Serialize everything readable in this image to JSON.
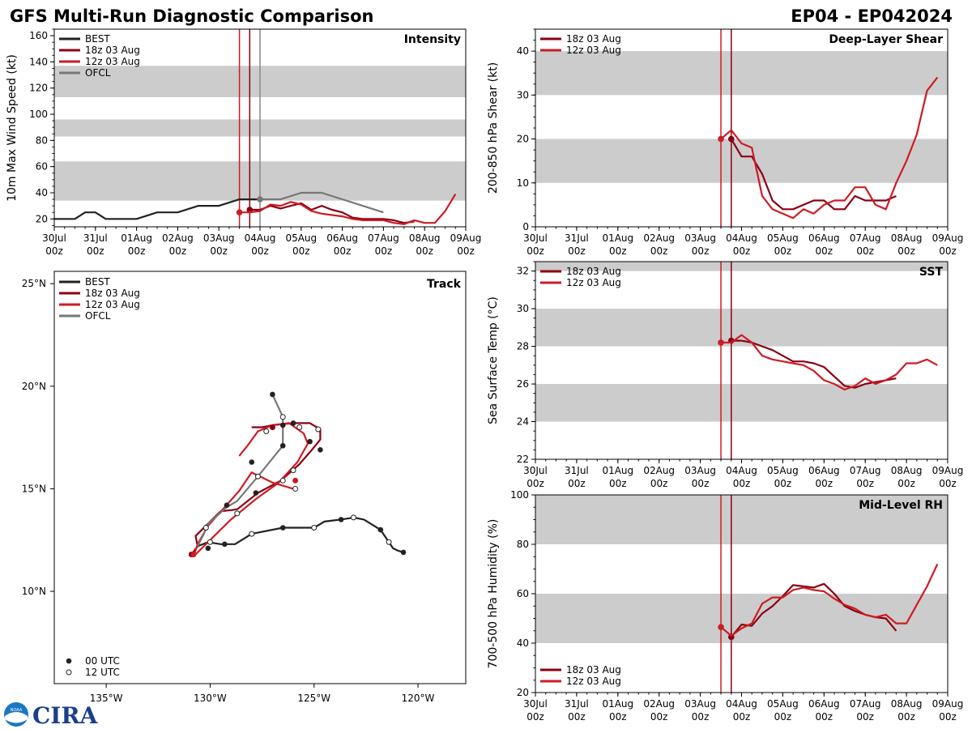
{
  "header": {
    "title": "GFS Multi-Run Diagnostic Comparison",
    "storm_id": "EP04 - EP042024"
  },
  "logo": {
    "text": "CIRA",
    "badge": "NOAA"
  },
  "colors": {
    "best": "#222222",
    "run18": "#8b0012",
    "run12": "#cc1c24",
    "ofcl": "#777777",
    "band": "#cccccc",
    "vline_18": "#8b0012",
    "vline_12": "#cc1c24",
    "vline_ofcl": "#888888"
  },
  "time_axis": {
    "ticks": [
      {
        "top": "30Jul",
        "bottom": "00z"
      },
      {
        "top": "31Jul",
        "bottom": "00z"
      },
      {
        "top": "01Aug",
        "bottom": "00z"
      },
      {
        "top": "02Aug",
        "bottom": "00z"
      },
      {
        "top": "03Aug",
        "bottom": "00z"
      },
      {
        "top": "04Aug",
        "bottom": "00z"
      },
      {
        "top": "05Aug",
        "bottom": "00z"
      },
      {
        "top": "06Aug",
        "bottom": "00z"
      },
      {
        "top": "07Aug",
        "bottom": "00z"
      },
      {
        "top": "08Aug",
        "bottom": "00z"
      },
      {
        "top": "09Aug",
        "bottom": "00z"
      }
    ],
    "run_lines": {
      "run12": 4.5,
      "run18": 4.75,
      "ofcl": 5.0
    }
  },
  "chart_data": [
    {
      "id": "intensity",
      "type": "line",
      "title": "Intensity",
      "ylabel": "10m Max Wind Speed (kt)",
      "xlim": [
        0,
        10
      ],
      "ylim": [
        14,
        165
      ],
      "yticks": [
        20,
        40,
        60,
        80,
        100,
        120,
        140,
        160
      ],
      "bands": [
        [
          34,
          64
        ],
        [
          83,
          96
        ],
        [
          113,
          137
        ]
      ],
      "legend": [
        "BEST",
        "18z 03 Aug",
        "12z 03 Aug",
        "OFCL"
      ],
      "series": [
        {
          "name": "BEST",
          "key": "best",
          "x": [
            0,
            0.5,
            0.75,
            1.0,
            1.25,
            2.0,
            2.5,
            3.0,
            3.5,
            3.75,
            4.0,
            4.5,
            4.75,
            5.0
          ],
          "y": [
            20,
            20,
            25,
            25,
            20,
            20,
            25,
            25,
            30,
            30,
            30,
            35,
            35,
            35
          ]
        },
        {
          "name": "18z 03 Aug",
          "key": "run18",
          "x": [
            4.75,
            5.0,
            5.25,
            5.5,
            5.75,
            6.0,
            6.25,
            6.5,
            6.75,
            7.0,
            7.25,
            7.5,
            7.75,
            8.0,
            8.25,
            8.5,
            8.75
          ],
          "y": [
            27,
            27,
            30,
            28,
            30,
            32,
            27,
            30,
            27,
            25,
            21,
            20,
            20,
            20,
            19,
            17,
            18
          ]
        },
        {
          "name": "12z 03 Aug",
          "key": "run12",
          "x": [
            4.5,
            4.75,
            5.0,
            5.25,
            5.5,
            5.75,
            6.0,
            6.25,
            6.5,
            6.75,
            7.0,
            7.25,
            7.5,
            7.75,
            8.0,
            8.25,
            8.5,
            8.75,
            9.0,
            9.25,
            9.5,
            9.75
          ],
          "y": [
            25,
            25,
            26,
            31,
            30,
            33,
            31,
            26,
            24,
            23,
            22,
            20,
            19,
            19,
            19,
            17,
            16,
            19,
            17,
            17,
            26,
            39
          ]
        },
        {
          "name": "OFCL",
          "key": "ofcl",
          "x": [
            5.0,
            5.5,
            6.0,
            6.5,
            8.0
          ],
          "y": [
            35,
            35,
            40,
            40,
            25
          ]
        }
      ]
    },
    {
      "id": "shear",
      "type": "line",
      "title": "Deep-Layer Shear",
      "ylabel": "200-850 hPa Shear (kt)",
      "xlim": [
        0,
        10
      ],
      "ylim": [
        0,
        45
      ],
      "yticks": [
        0,
        10,
        20,
        30,
        40
      ],
      "bands": [
        [
          10,
          20
        ],
        [
          30,
          40
        ]
      ],
      "legend": [
        "18z 03 Aug",
        "12z 03 Aug"
      ],
      "series": [
        {
          "name": "18z 03 Aug",
          "key": "run18",
          "x": [
            4.75,
            5.0,
            5.25,
            5.5,
            5.75,
            6.0,
            6.25,
            6.5,
            6.75,
            7.0,
            7.25,
            7.5,
            7.75,
            8.0,
            8.25,
            8.5,
            8.75
          ],
          "y": [
            20,
            16,
            16,
            12,
            6,
            4,
            4,
            5,
            6,
            6,
            4,
            4,
            7,
            6,
            6,
            6,
            7
          ]
        },
        {
          "name": "12z 03 Aug",
          "key": "run12",
          "x": [
            4.5,
            4.75,
            5.0,
            5.25,
            5.5,
            5.75,
            6.0,
            6.25,
            6.5,
            6.75,
            7.0,
            7.25,
            7.5,
            7.75,
            8.0,
            8.25,
            8.5,
            8.75,
            9.0,
            9.25,
            9.5,
            9.75
          ],
          "y": [
            20,
            22,
            19,
            18,
            7,
            4,
            3,
            2,
            4,
            3,
            5,
            6,
            6,
            9,
            9,
            5,
            4,
            10,
            15,
            21,
            31,
            34
          ]
        }
      ]
    },
    {
      "id": "sst",
      "type": "line",
      "title": "SST",
      "ylabel": "Sea Surface Temp (°C)",
      "xlim": [
        0,
        10
      ],
      "ylim": [
        22,
        32.5
      ],
      "yticks": [
        22,
        24,
        26,
        28,
        30,
        32
      ],
      "bands": [
        [
          24,
          26
        ],
        [
          28,
          30
        ],
        [
          32,
          32.5
        ]
      ],
      "legend": [
        "18z 03 Aug",
        "12z 03 Aug"
      ],
      "series": [
        {
          "name": "18z 03 Aug",
          "key": "run18",
          "x": [
            4.75,
            5.0,
            5.25,
            5.5,
            5.75,
            6.0,
            6.25,
            6.5,
            6.75,
            7.0,
            7.25,
            7.5,
            7.75,
            8.0,
            8.25,
            8.5,
            8.75
          ],
          "y": [
            28.3,
            28.3,
            28.2,
            28.0,
            27.8,
            27.5,
            27.2,
            27.2,
            27.1,
            26.9,
            26.4,
            25.9,
            25.8,
            26.0,
            26.1,
            26.2,
            26.3
          ]
        },
        {
          "name": "12z 03 Aug",
          "key": "run12",
          "x": [
            4.5,
            4.75,
            5.0,
            5.25,
            5.5,
            5.75,
            6.0,
            6.25,
            6.5,
            6.75,
            7.0,
            7.25,
            7.5,
            7.75,
            8.0,
            8.25,
            8.5,
            8.75,
            9.0,
            9.25,
            9.5,
            9.75
          ],
          "y": [
            28.2,
            28.2,
            28.6,
            28.2,
            27.5,
            27.3,
            27.2,
            27.1,
            27.0,
            26.7,
            26.2,
            26.0,
            25.7,
            25.9,
            26.3,
            26.0,
            26.2,
            26.5,
            27.1,
            27.1,
            27.3,
            27.0
          ]
        }
      ]
    },
    {
      "id": "rh",
      "type": "line",
      "title": "Mid-Level RH",
      "ylabel": "700-500 hPa Humidity (%)",
      "xlim": [
        0,
        10
      ],
      "ylim": [
        20,
        100
      ],
      "yticks": [
        20,
        40,
        60,
        80,
        100
      ],
      "bands": [
        [
          40,
          60
        ],
        [
          80,
          100
        ]
      ],
      "legend": [
        "18z 03 Aug",
        "12z 03 Aug"
      ],
      "series": [
        {
          "name": "18z 03 Aug",
          "key": "run18",
          "x": [
            4.75,
            5.0,
            5.25,
            5.5,
            5.75,
            6.0,
            6.25,
            6.5,
            6.75,
            7.0,
            7.25,
            7.5,
            7.75,
            8.0,
            8.25,
            8.5,
            8.75
          ],
          "y": [
            42.5,
            47.5,
            47,
            52,
            55,
            59,
            63.5,
            63,
            62.5,
            64,
            60,
            55,
            53,
            51.5,
            50.5,
            50,
            45
          ]
        },
        {
          "name": "12z 03 Aug",
          "key": "run12",
          "x": [
            4.5,
            4.75,
            5.0,
            5.25,
            5.5,
            5.75,
            6.0,
            6.25,
            6.5,
            6.75,
            7.0,
            7.25,
            7.5,
            7.75,
            8.0,
            8.25,
            8.5,
            8.75,
            9.0,
            9.25,
            9.5,
            9.75
          ],
          "y": [
            46.5,
            43,
            46,
            48,
            56,
            58.5,
            58.5,
            61.5,
            62.5,
            61.5,
            61,
            58,
            55.5,
            54,
            51.5,
            50.5,
            51.5,
            48,
            48,
            55.5,
            63,
            72
          ]
        }
      ]
    },
    {
      "id": "track",
      "type": "scatter",
      "title": "Track",
      "xlim": [
        -137.5,
        -117.7
      ],
      "ylim": [
        5.5,
        25.6
      ],
      "xticks": [
        {
          "v": -135,
          "label": "135°W"
        },
        {
          "v": -130,
          "label": "130°W"
        },
        {
          "v": -125,
          "label": "125°W"
        },
        {
          "v": -120,
          "label": "120°W"
        }
      ],
      "yticks": [
        {
          "v": 10,
          "label": "10°N"
        },
        {
          "v": 15,
          "label": "15°N"
        },
        {
          "v": 20,
          "label": "20°N"
        },
        {
          "v": 25,
          "label": "25°N"
        }
      ],
      "legend": [
        "BEST",
        "18z 03 Aug",
        "12z 03 Aug",
        "OFCL"
      ],
      "marker_legend": [
        "00 UTC",
        "12 UTC"
      ],
      "series": [
        {
          "name": "BEST",
          "key": "best",
          "lon": [
            -120.7,
            -121.0,
            -121.2,
            -121.4,
            -121.8,
            -122.6,
            -123.1,
            -123.7,
            -124.5,
            -125.0,
            -126.5,
            -128.0,
            -128.8,
            -129.5,
            -130.1,
            -130.6
          ],
          "lat": [
            11.9,
            12.0,
            12.1,
            12.4,
            13.0,
            13.5,
            13.6,
            13.5,
            13.4,
            13.1,
            13.1,
            12.8,
            12.3,
            12.3,
            12.4,
            12.2
          ],
          "m00": [
            [
              -120.7,
              11.9
            ],
            [
              -121.8,
              13.0
            ],
            [
              -123.7,
              13.5
            ],
            [
              -126.5,
              13.1
            ],
            [
              -129.3,
              12.3
            ],
            [
              -130.1,
              12.1
            ]
          ],
          "m12": [
            [
              -121.4,
              12.4
            ],
            [
              -123.1,
              13.6
            ],
            [
              -125.0,
              13.1
            ],
            [
              -128.0,
              12.8
            ],
            [
              -130.0,
              12.4
            ]
          ]
        },
        {
          "name": "18z 03 Aug",
          "key": "run18",
          "lon": [
            -130.9,
            -130.6,
            -130.7,
            -130.0,
            -129.5,
            -128.7,
            -127.7,
            -126.6,
            -125.7,
            -125.1,
            -124.7,
            -124.7,
            -125.2,
            -126.0,
            -127.0,
            -127.5,
            -128.0
          ],
          "lat": [
            11.8,
            12.2,
            12.7,
            13.4,
            13.9,
            14.0,
            14.8,
            15.4,
            16.2,
            16.9,
            17.4,
            17.9,
            18.2,
            18.2,
            18.1,
            18.0,
            18.0
          ],
          "m00": [],
          "m12": []
        },
        {
          "name": "12z 03 Aug",
          "key": "run12",
          "lon": [
            -126.0,
            -127.0,
            -128.0,
            -128.6,
            -129.3,
            -130.1,
            -130.6,
            -130.8,
            -130.2,
            -129.0,
            -127.8,
            -126.7,
            -125.8,
            -125.3,
            -125.5,
            -126.2,
            -127.0,
            -127.7,
            -128.2,
            -128.6
          ],
          "lat": [
            15.0,
            15.3,
            15.8,
            14.9,
            14.1,
            13.2,
            12.3,
            11.7,
            12.3,
            13.5,
            14.5,
            15.3,
            16.3,
            17.2,
            17.7,
            18.2,
            18.1,
            17.8,
            17.1,
            16.6
          ],
          "m00": [],
          "m12": []
        },
        {
          "name": "OFCL",
          "key": "ofcl",
          "lon": [
            -130.6,
            -130.3,
            -130.1,
            -129.2,
            -128.7,
            -127.7,
            -126.5,
            -126.5,
            -126.5,
            -127.0
          ],
          "lat": [
            12.2,
            12.8,
            13.3,
            14.1,
            14.4,
            15.6,
            17.1,
            18.1,
            18.5,
            19.6
          ],
          "m00": [
            [
              -129.2,
              14.2
            ],
            [
              -127.0,
              19.6
            ],
            [
              -126.5,
              17.1
            ]
          ],
          "m12": [
            [
              -130.2,
              13.1
            ],
            [
              -128.7,
              13.8
            ],
            [
              -127.7,
              15.6
            ],
            [
              -126.5,
              18.5
            ]
          ]
        }
      ],
      "run_points": [
        {
          "key": "run18",
          "lon": [
            -130.9,
            -127.0
          ],
          "lat": [
            11.8,
            18.0
          ]
        },
        {
          "key": "run12",
          "lon": [
            -130.8,
            -125.9
          ],
          "lat": [
            11.8,
            15.4
          ]
        }
      ],
      "extra_points": {
        "m00": [
          [
            -126.0,
            18.2
          ],
          [
            -125.2,
            17.3
          ],
          [
            -124.7,
            16.9
          ],
          [
            -126.5,
            18.1
          ],
          [
            -128.0,
            16.3
          ],
          [
            -127.8,
            14.8
          ]
        ],
        "m12": [
          [
            -125.7,
            18.0
          ],
          [
            -124.8,
            17.9
          ],
          [
            -126.0,
            15.9
          ],
          [
            -126.5,
            15.4
          ],
          [
            -125.9,
            15.0
          ],
          [
            -127.0,
            18.0
          ],
          [
            -127.3,
            17.8
          ]
        ]
      }
    }
  ]
}
